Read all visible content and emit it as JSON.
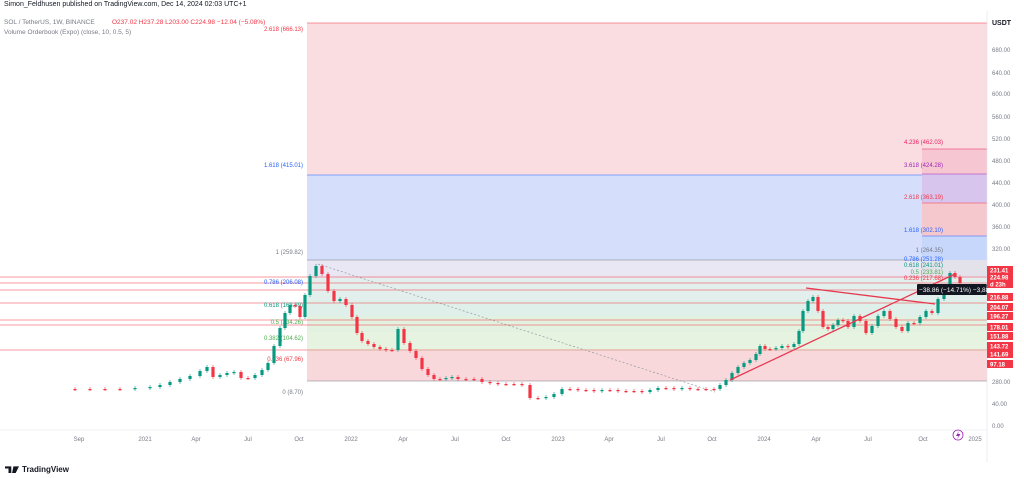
{
  "header": {
    "published_by": "Simon_Feldhusen published on TradingView.com, Dec 14, 2024 02:03 UTC+1"
  },
  "legend": {
    "symbol": "SOL / TetherUS, 1W, BINANCE",
    "ohlc": "O237.02 H237.28 L203.00 C224.98 −12.04 (−5.08%)",
    "indicator": "Volume Orderbook (Expo) (close, 10, 0.5, 5)"
  },
  "price_axis": {
    "currency": "USDT",
    "ticks": [
      "680.00",
      "640.00",
      "600.00",
      "560.00",
      "520.00",
      "480.00",
      "440.00",
      "400.00",
      "360.00",
      "320.00",
      "280.00",
      "40.00",
      "0.00",
      "−40.00"
    ],
    "price_tags": [
      {
        "label": "231.41",
        "color": "#f23645"
      },
      {
        "label": "224.98",
        "color": "#f23645"
      },
      {
        "label": "d 23h",
        "color": "#f23645"
      },
      {
        "label": "216.88",
        "color": "#f23645"
      },
      {
        "label": "204.07",
        "color": "#f23645"
      },
      {
        "label": "196.27",
        "color": "#f23645"
      },
      {
        "label": "178.01",
        "color": "#f23645"
      },
      {
        "label": "151.88",
        "color": "#f23645"
      },
      {
        "label": "143.72",
        "color": "#f23645"
      },
      {
        "label": "141.69",
        "color": "#f23645"
      },
      {
        "label": "97.18",
        "color": "#f23645"
      }
    ]
  },
  "time_axis": {
    "ticks": [
      "Sep",
      "2021",
      "Apr",
      "Jul",
      "Oct",
      "2022",
      "Apr",
      "Jul",
      "Oct",
      "2023",
      "Apr",
      "Jul",
      "Oct",
      "2024",
      "Apr",
      "Jul",
      "Oct",
      "2025"
    ]
  },
  "fib_left": [
    {
      "label": "2.618 (666.13)",
      "color": "#f23645"
    },
    {
      "label": "1.618 (415.01)",
      "color": "#2962ff"
    },
    {
      "label": "1 (259.82)",
      "color": "#787b86"
    },
    {
      "label": "0.786 (206.08)",
      "color": "#2962ff"
    },
    {
      "label": "0.618 (163.89)",
      "color": "#089981"
    },
    {
      "label": "0.5 (134.26)",
      "color": "#4caf50"
    },
    {
      "label": "0.382 (104.62)",
      "color": "#4caf50"
    },
    {
      "label": "0.236 (67.96)",
      "color": "#f23645"
    },
    {
      "label": "0 (8.70)",
      "color": "#787b86"
    }
  ],
  "fib_right": [
    {
      "label": "4.236 (462.03)",
      "color": "#e91e63"
    },
    {
      "label": "3.618 (424.28)",
      "color": "#9c27b0"
    },
    {
      "label": "2.618 (363.19)",
      "color": "#f23645"
    },
    {
      "label": "1.618 (302.10)",
      "color": "#2962ff"
    },
    {
      "label": "1 (264.35)",
      "color": "#787b86"
    },
    {
      "label": "0.786 (251.28)",
      "color": "#2962ff"
    },
    {
      "label": "0.618 (241.01)",
      "color": "#089981"
    },
    {
      "label": "0.5 (233.81)",
      "color": "#4caf50"
    },
    {
      "label": "0.236 (217.68)",
      "color": "#f23645"
    }
  ],
  "measure": {
    "label": "−38.86 (−14.71%) −3,88"
  },
  "footer": {
    "brand": "TradingView"
  },
  "colors": {
    "up": "#089981",
    "down": "#f23645",
    "trend": "#e53950"
  }
}
